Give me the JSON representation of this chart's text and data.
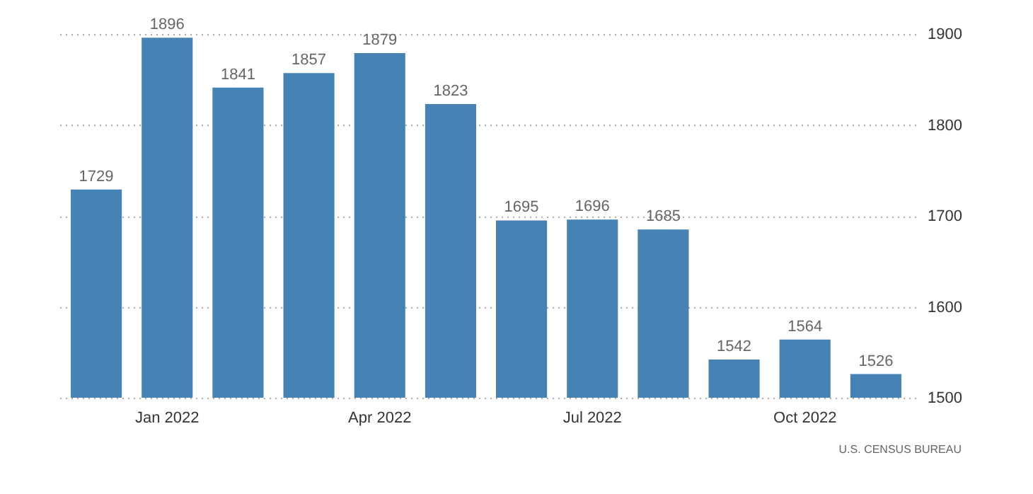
{
  "chart_data": {
    "type": "bar",
    "categories": [
      null,
      "Jan 2022",
      null,
      null,
      "Apr 2022",
      null,
      null,
      "Jul 2022",
      null,
      null,
      "Oct 2022",
      null
    ],
    "values": [
      1729,
      1896,
      1841,
      1857,
      1879,
      1823,
      1695,
      1696,
      1685,
      1542,
      1564,
      1526
    ],
    "color": "#4682b4",
    "ylim": [
      1500,
      1900
    ],
    "yticks": [
      1500,
      1600,
      1700,
      1800,
      1900
    ],
    "grid": "y",
    "data_labels": true,
    "annotations": [
      "U.S. CENSUS BUREAU"
    ]
  }
}
